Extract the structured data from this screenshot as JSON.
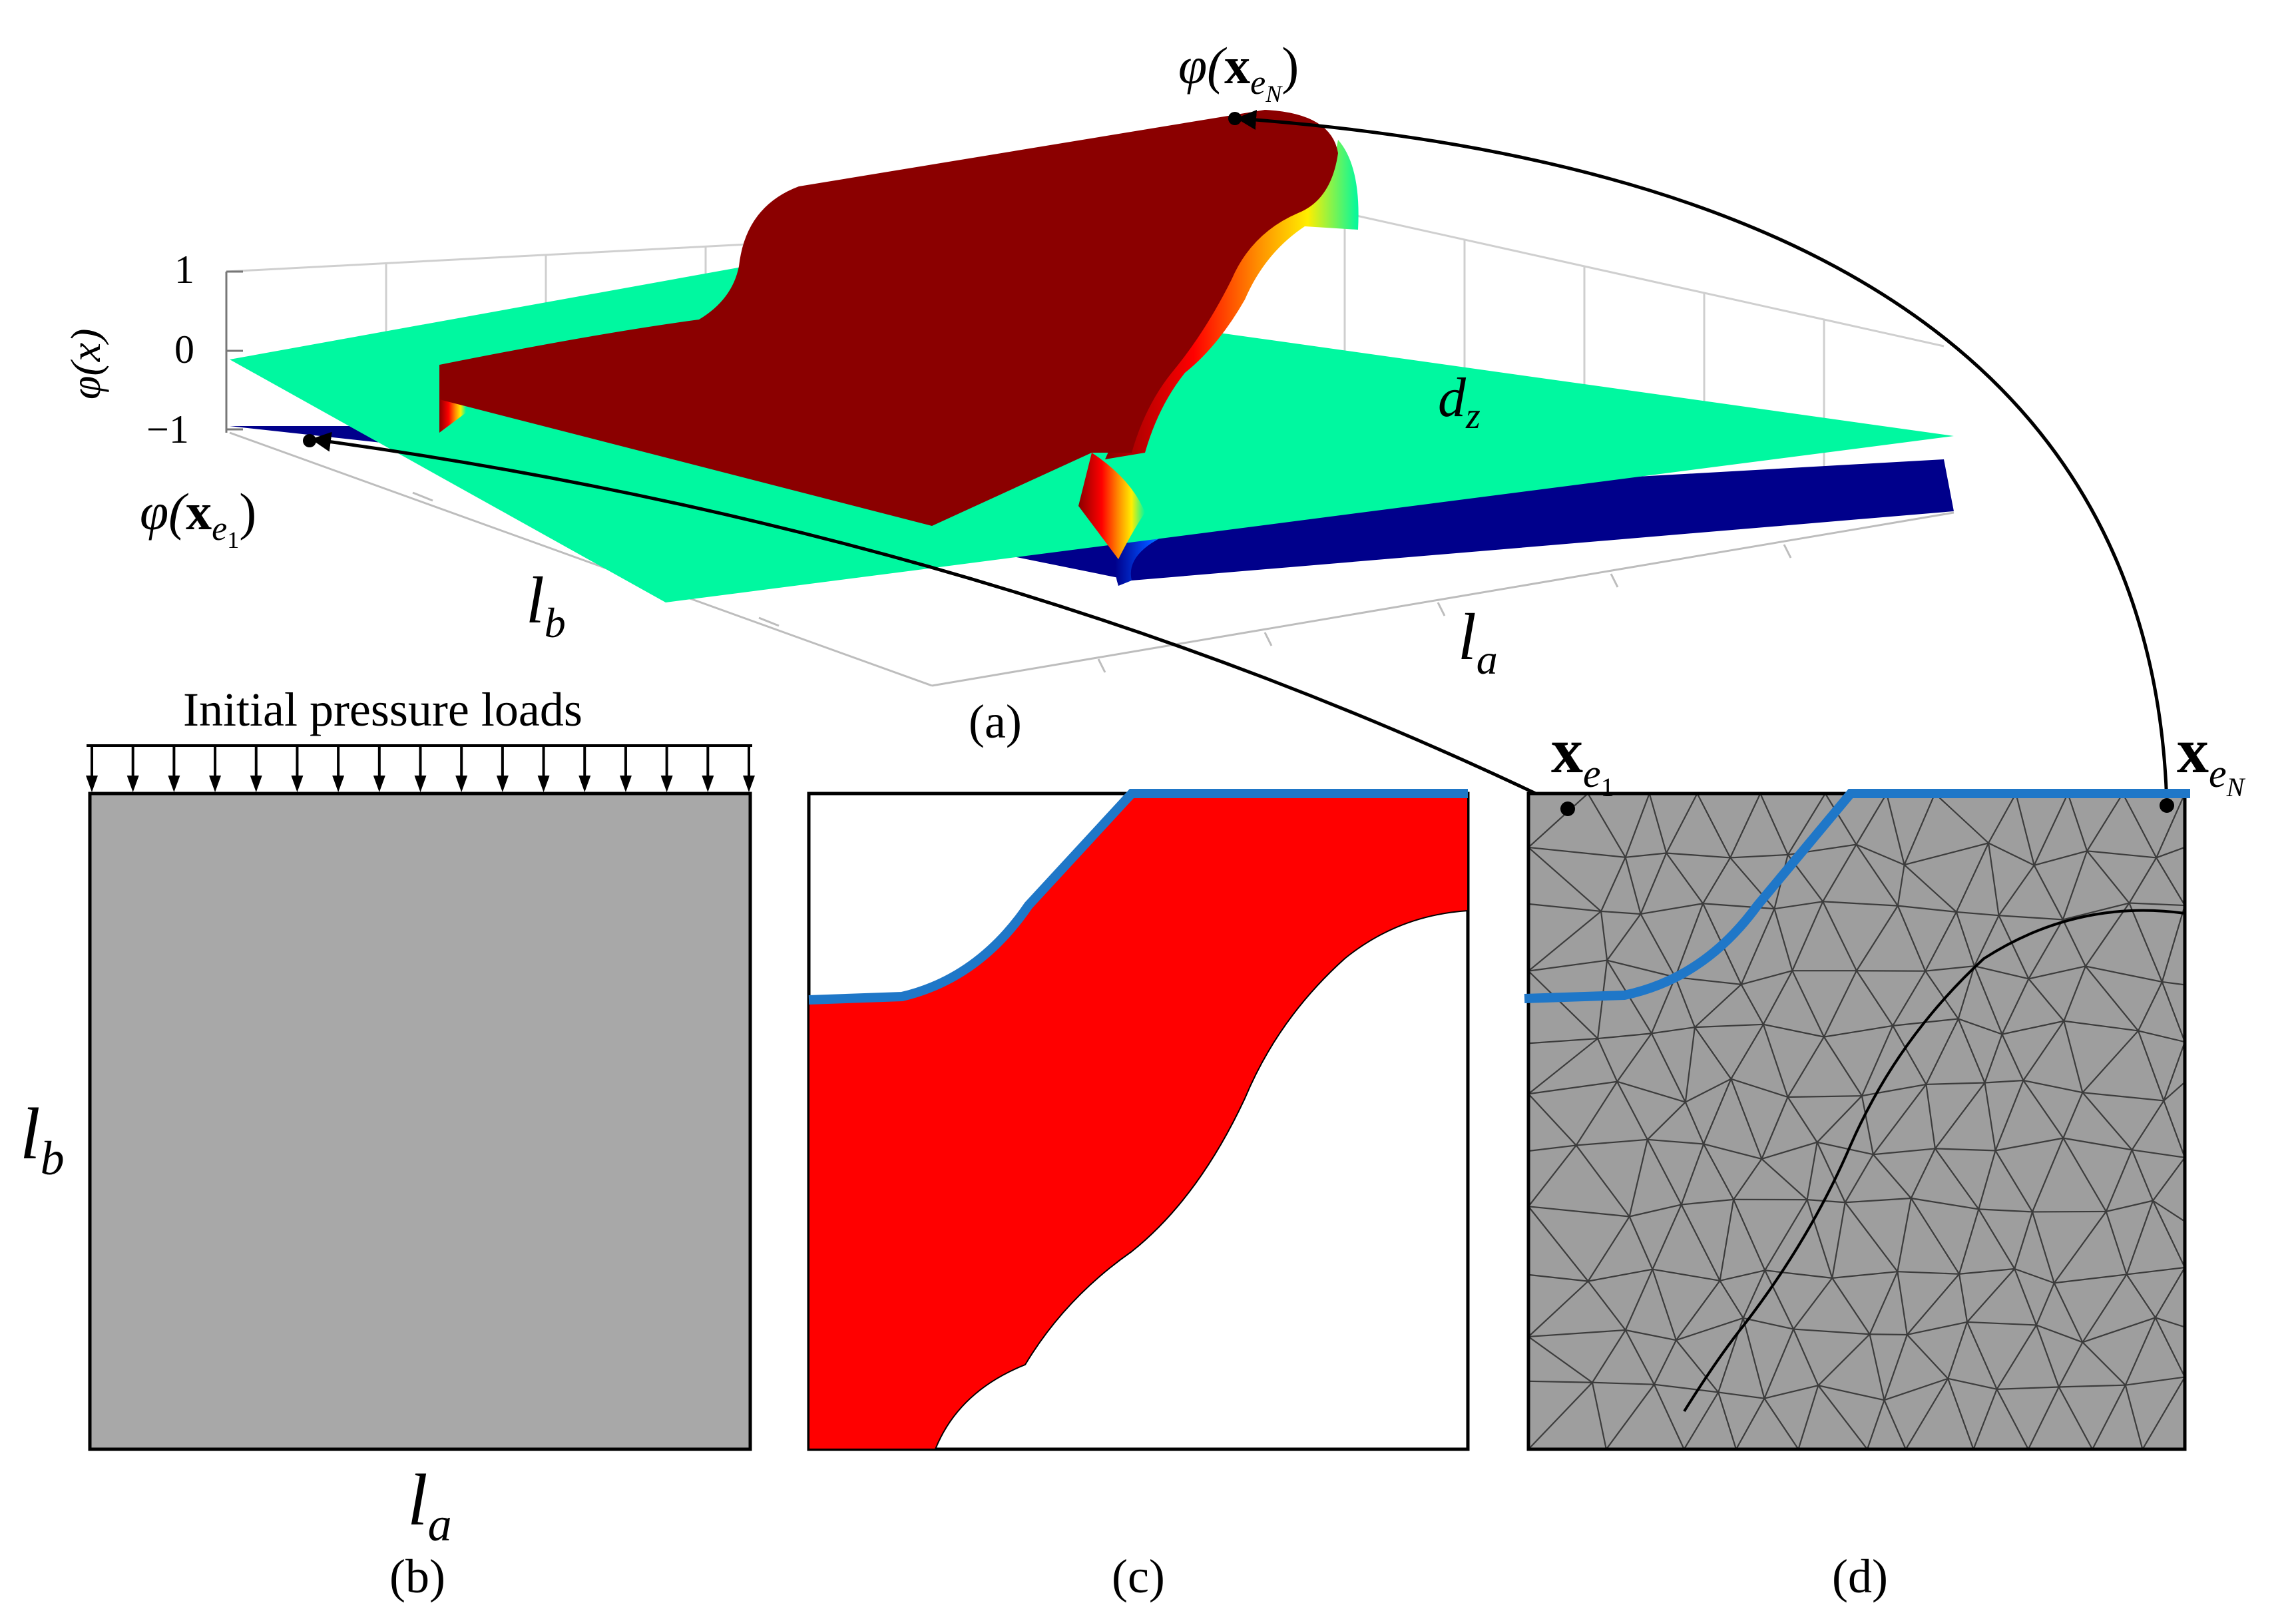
{
  "panel_a": {
    "caption": "(a)",
    "z_ticks": [
      "1",
      "0",
      "−1"
    ],
    "z_axis_label": "φ(x)",
    "phi_e1_label": {
      "phi": "φ(",
      "x": "x",
      "sub": "e",
      "subsub": "1",
      "close": ")"
    },
    "phi_eN_label": {
      "phi": "φ(",
      "x": "x",
      "sub": "e",
      "subsub": "N",
      "close": ")"
    },
    "dz_label": {
      "main": "d",
      "sub": "z"
    },
    "la_label": {
      "main": "l",
      "sub": "a"
    },
    "lb_label": {
      "main": "l",
      "sub": "b"
    },
    "colors": {
      "top_surface": "#8b0000",
      "zero_plane": "#00f8a0",
      "bottom_plane": "#00008b",
      "edge_glow": [
        "#ff0000",
        "#ff8c00",
        "#ffff00"
      ]
    }
  },
  "panel_b": {
    "caption": "(b)",
    "load_title": "Initial pressure loads",
    "la_label": {
      "main": "l",
      "sub": "a"
    },
    "lb_label": {
      "main": "l",
      "sub": "b"
    },
    "colors": {
      "fill": "#a8a8a8"
    }
  },
  "panel_c": {
    "caption": "(c)",
    "colors": {
      "material": "#ff0000",
      "boundary": "#1f77c8"
    }
  },
  "panel_d": {
    "caption": "(d)",
    "xe1_label": {
      "x": "x",
      "sub": "e",
      "subsub": "1"
    },
    "xeN_label": {
      "x": "x",
      "sub": "e",
      "subsub": "N"
    },
    "colors": {
      "mesh_fill": "#9e9e9e",
      "mesh_lines": "#3c3c3c",
      "boundary": "#1f77c8"
    }
  }
}
